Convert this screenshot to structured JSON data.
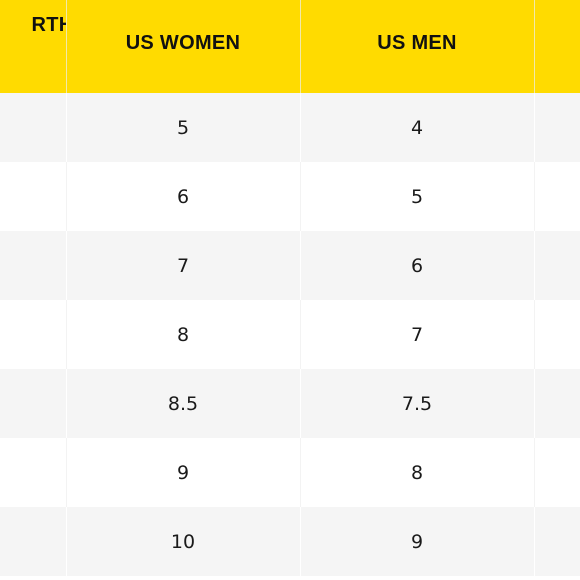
{
  "table": {
    "headers": [
      "RTH",
      "US WOMEN",
      "US MEN",
      ""
    ],
    "rows": [
      [
        "",
        "5",
        "4",
        ""
      ],
      [
        "",
        "6",
        "5",
        ""
      ],
      [
        "",
        "7",
        "6",
        ""
      ],
      [
        "",
        "8",
        "7",
        ""
      ],
      [
        "",
        "8.5",
        "7.5",
        ""
      ],
      [
        "",
        "9",
        "8",
        ""
      ],
      [
        "",
        "10",
        "9",
        ""
      ]
    ]
  },
  "colors": {
    "header_bg": "#ffdb00",
    "header_text": "#111111",
    "row_alt_bg": "#f5f5f5",
    "row_bg": "#ffffff",
    "cell_text": "#1a1a1a"
  }
}
